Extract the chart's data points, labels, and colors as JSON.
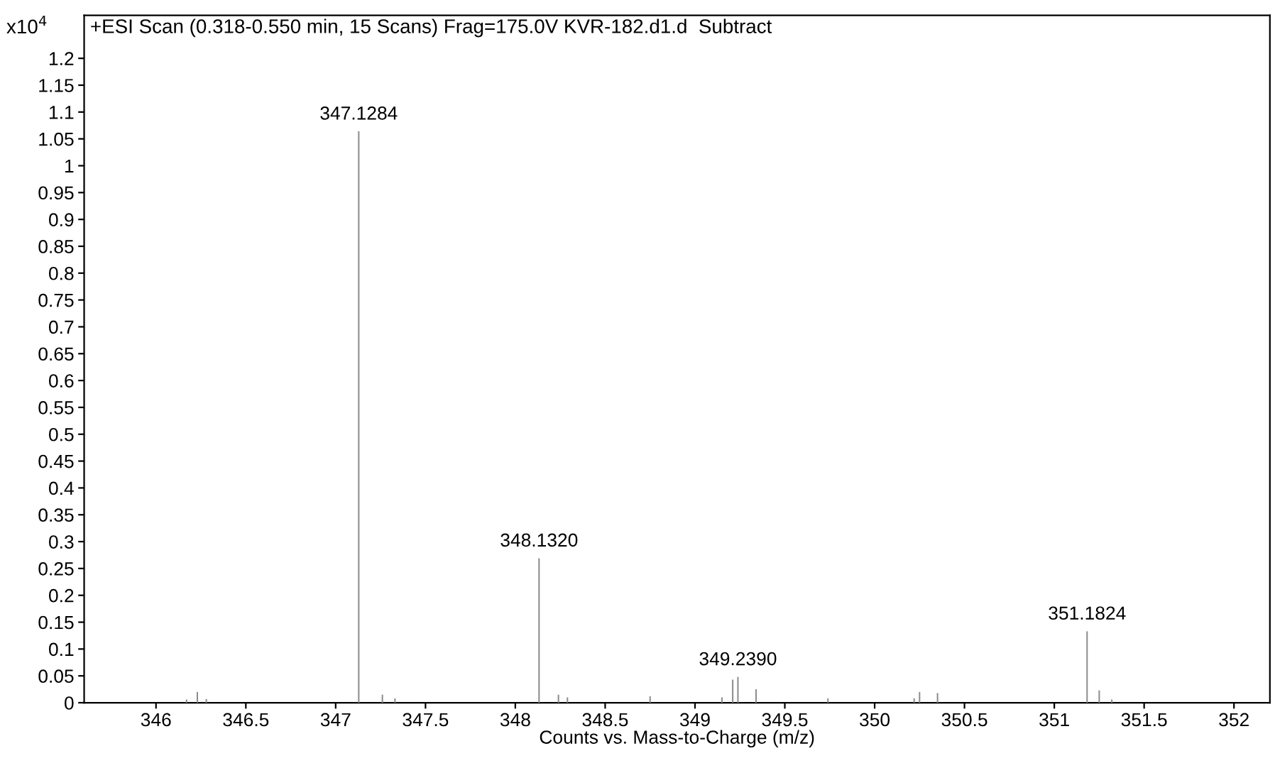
{
  "chart_data": {
    "type": "bar",
    "title": "+ESI Scan (0.318-0.550 min, 15 Scans) Frag=175.0V KVR-182.d1.d  Subtract",
    "xlabel": "Counts vs. Mass-to-Charge (m/z)",
    "ylabel": "x10$^{4}$",
    "x": [
      346.17,
      346.23,
      346.28,
      347.1284,
      347.26,
      347.33,
      348.132,
      348.24,
      348.29,
      348.75,
      349.15,
      349.21,
      349.239,
      349.34,
      349.74,
      350.22,
      350.25,
      350.35,
      351.1824,
      351.25,
      351.32
    ],
    "values": [
      0.006,
      0.02,
      0.007,
      1.064,
      0.015,
      0.008,
      0.269,
      0.015,
      0.01,
      0.012,
      0.01,
      0.043,
      0.048,
      0.025,
      0.008,
      0.008,
      0.02,
      0.018,
      0.133,
      0.023,
      0.006
    ],
    "color": "#8c8c8c",
    "xlim": [
      345.6,
      352.2
    ],
    "ylim": [
      0,
      1.28
    ],
    "xticks": [
      346,
      346.5,
      347,
      347.5,
      348,
      348.5,
      349,
      349.5,
      350,
      350.5,
      351,
      351.5,
      352
    ],
    "yticks": [
      0,
      0.05,
      0.1,
      0.15,
      0.2,
      0.25,
      0.3,
      0.35,
      0.4,
      0.45,
      0.5,
      0.55,
      0.6,
      0.65,
      0.7,
      0.75,
      0.8,
      0.85,
      0.9,
      0.95,
      1,
      1.05,
      1.1,
      1.15,
      1.2
    ],
    "annotations": [
      {
        "text": "347.1284",
        "x": 347.1284,
        "y": 1.064
      },
      {
        "text": "348.1320",
        "x": 348.132,
        "y": 0.269
      },
      {
        "text": "349.2390",
        "x": 349.239,
        "y": 0.048
      },
      {
        "text": "351.1824",
        "x": 351.1824,
        "y": 0.133
      }
    ],
    "grid": false,
    "legend": false
  }
}
